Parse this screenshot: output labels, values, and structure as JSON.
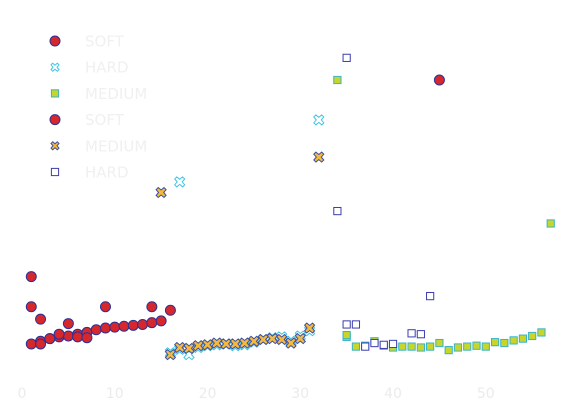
{
  "chart_data": {
    "type": "scatter",
    "title": "",
    "xlabel": "",
    "ylabel": "",
    "xlim": [
      0,
      58
    ],
    "ylim": [
      0,
      42
    ],
    "grid": false,
    "legend_position": "top-left",
    "xticks": [
      "0",
      "10",
      "20",
      "30",
      "40",
      "50"
    ],
    "xtick_values": [
      0,
      10,
      20,
      30,
      40,
      50
    ],
    "colors": {
      "soft_fill": "#d6272c",
      "soft_edge": "#2b3196",
      "hard_fill": "#ffffff",
      "hard_edge": "#40c4e4",
      "medium_fill": "#c8d62b",
      "medium_edge": "#37b4c8",
      "medium2_fill": "#f5b93c",
      "medium2_edge": "#3c50a0",
      "hard2_edge": "#3c3cae"
    },
    "series": [
      {
        "name": "SOFT",
        "marker": "circle",
        "x": [
          1,
          2,
          3,
          4,
          5,
          6,
          7,
          8,
          9,
          10,
          11,
          12,
          13,
          14,
          15
        ],
        "y": [
          5.2,
          5.5,
          5.8,
          6.0,
          6.1,
          6.3,
          6.5,
          6.8,
          7.0,
          7.1,
          7.2,
          7.3,
          7.4,
          7.6,
          7.8
        ]
      },
      {
        "name": "HARD",
        "marker": "x",
        "x": [
          16,
          17,
          18,
          19,
          20,
          21,
          22,
          23,
          24,
          25,
          26,
          27,
          28,
          29,
          30,
          31,
          17,
          32
        ],
        "y": [
          4.2,
          4.6,
          4.0,
          4.8,
          5.0,
          5.1,
          5.2,
          5.0,
          5.1,
          5.4,
          5.7,
          5.9,
          6.0,
          5.5,
          6.1,
          6.7,
          23.5,
          30.5
        ]
      },
      {
        "name": "MEDIUM",
        "marker": "square",
        "x": [
          35,
          36,
          37,
          38,
          39,
          40,
          41,
          42,
          43,
          44,
          45,
          46,
          47,
          48,
          49,
          50,
          51,
          52,
          53,
          54,
          55,
          56,
          57,
          34,
          35
        ],
        "y": [
          6.0,
          4.9,
          5.0,
          5.5,
          5.0,
          4.8,
          4.9,
          4.9,
          4.8,
          4.9,
          5.3,
          4.5,
          4.8,
          4.9,
          5.0,
          4.9,
          5.4,
          5.3,
          5.6,
          5.8,
          6.1,
          6.5,
          18.8,
          35.0,
          6.2
        ]
      },
      {
        "name": "SOFT",
        "marker": "circle",
        "x": [
          1,
          1,
          2,
          2,
          3,
          4,
          5,
          6,
          7,
          9,
          14,
          16,
          45
        ],
        "y": [
          12.8,
          9.4,
          8.0,
          5.2,
          5.8,
          6.3,
          7.5,
          6.0,
          5.9,
          9.4,
          9.4,
          9.0,
          35.0
        ]
      },
      {
        "name": "MEDIUM",
        "marker": "x",
        "x": [
          16,
          17,
          18,
          19,
          20,
          21,
          22,
          23,
          24,
          25,
          26,
          27,
          28,
          29,
          30,
          31,
          15,
          32
        ],
        "y": [
          4.0,
          4.8,
          4.7,
          5.0,
          5.1,
          5.3,
          5.2,
          5.2,
          5.3,
          5.5,
          5.7,
          5.8,
          5.7,
          5.3,
          5.8,
          7.0,
          22.3,
          26.3
        ]
      },
      {
        "name": "HARD",
        "marker": "square",
        "x": [
          34,
          35,
          36,
          37,
          38,
          39,
          40,
          42,
          43,
          44,
          35
        ],
        "y": [
          20.2,
          37.5,
          7.4,
          4.9,
          5.3,
          5.1,
          5.2,
          6.4,
          6.3,
          10.6,
          7.4
        ]
      }
    ]
  }
}
